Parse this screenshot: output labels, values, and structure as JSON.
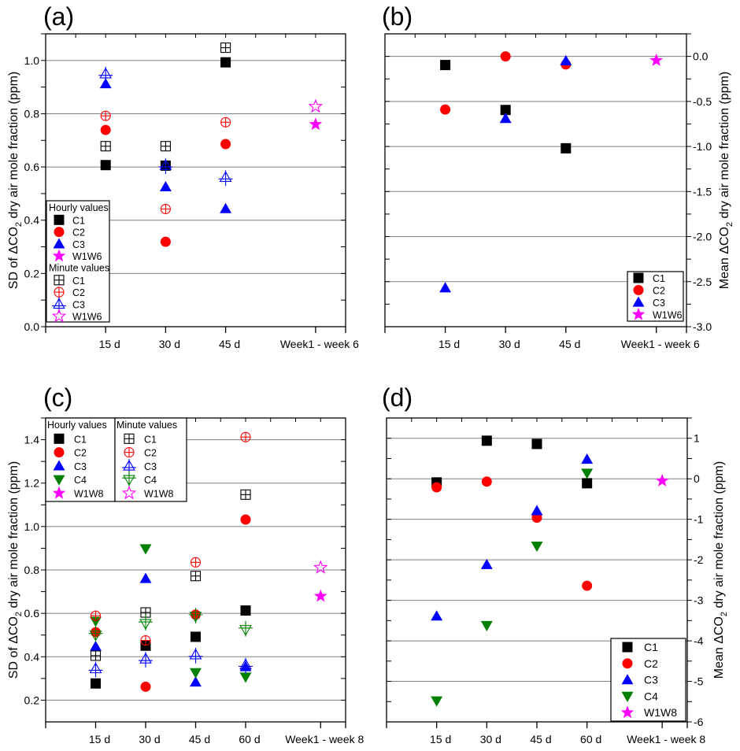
{
  "chart_data": [
    {
      "panel_label": "(a)",
      "type": "scatter",
      "categories": [
        "15 d",
        "30 d",
        "45 d",
        "Week1 - week 6"
      ],
      "ylabel": {
        "pre": "SD of ΔCO",
        "sub": "2",
        "post": " dry air mole fraction (ppm)"
      },
      "ylim": [
        0,
        1.1
      ],
      "y_ticks": [
        0,
        0.2,
        0.4,
        0.6,
        0.8,
        1.0
      ],
      "y_tick_labels": [
        "0.0",
        "0.2",
        "0.4",
        "0.6",
        "0.8",
        "1.0"
      ],
      "y_axis_side": "left",
      "grid": true,
      "legend_placement": "bottom-left",
      "series": [
        {
          "name": "C1",
          "group": "Hourly values",
          "marker": "square",
          "filled": true,
          "color": "#000000",
          "values": [
            0.607,
            0.605,
            0.993,
            null
          ]
        },
        {
          "name": "C2",
          "group": "Hourly values",
          "marker": "circle",
          "filled": true,
          "color": "#ff0000",
          "values": [
            0.739,
            0.319,
            0.686,
            null
          ]
        },
        {
          "name": "C3",
          "group": "Hourly values",
          "marker": "triangle-up",
          "filled": true,
          "color": "#0000ff",
          "values": [
            0.912,
            0.525,
            0.443,
            null
          ]
        },
        {
          "name": "W1W6",
          "group": "Hourly values",
          "marker": "star",
          "filled": true,
          "color": "#ff00ff",
          "values": [
            null,
            null,
            null,
            0.76
          ]
        },
        {
          "name": "C1",
          "group": "Minute values",
          "marker": "square",
          "filled": false,
          "color": "#000000",
          "values": [
            0.678,
            0.678,
            1.048,
            null
          ]
        },
        {
          "name": "C2",
          "group": "Minute values",
          "marker": "circle",
          "filled": false,
          "color": "#ff0000",
          "values": [
            0.792,
            0.442,
            0.768,
            null
          ]
        },
        {
          "name": "C3",
          "group": "Minute values",
          "marker": "triangle-up",
          "filled": false,
          "color": "#0000ff",
          "values": [
            0.95,
            0.606,
            0.561,
            null
          ]
        },
        {
          "name": "W1W6",
          "group": "Minute values",
          "marker": "star",
          "filled": false,
          "color": "#ff00ff",
          "values": [
            null,
            null,
            null,
            0.827
          ]
        }
      ]
    },
    {
      "panel_label": "(b)",
      "type": "scatter",
      "categories": [
        "15 d",
        "30 d",
        "45 d",
        "Week1 - week 6"
      ],
      "ylabel": {
        "pre": "Mean ΔCO",
        "sub": "2",
        "post": " dry air mole fraction (ppm)"
      },
      "ylim": [
        -3.0,
        0.25
      ],
      "y_ticks": [
        0,
        -0.5,
        -1.0,
        -1.5,
        -2.0,
        -2.5,
        -3.0
      ],
      "y_tick_labels": [
        "0.0",
        "-0.5",
        "-1.0",
        "-1.5",
        "-2.0",
        "-2.5",
        "-3.0"
      ],
      "y_axis_side": "right",
      "grid": true,
      "legend_placement": "bottom-right",
      "series": [
        {
          "name": "C1",
          "group": "",
          "marker": "square",
          "filled": true,
          "color": "#000000",
          "values": [
            -0.096,
            -0.595,
            -1.02,
            null
          ]
        },
        {
          "name": "C2",
          "group": "",
          "marker": "circle",
          "filled": true,
          "color": "#ff0000",
          "values": [
            -0.59,
            0.0,
            -0.09,
            null
          ]
        },
        {
          "name": "C3",
          "group": "",
          "marker": "triangle-up",
          "filled": true,
          "color": "#0000ff",
          "values": [
            -2.57,
            -0.69,
            -0.05,
            null
          ]
        },
        {
          "name": "W1W6",
          "group": "",
          "marker": "star",
          "filled": true,
          "color": "#ff00ff",
          "values": [
            null,
            null,
            null,
            -0.045
          ]
        }
      ]
    },
    {
      "panel_label": "(c)",
      "type": "scatter",
      "categories": [
        "15 d",
        "30 d",
        "45 d",
        "60 d",
        "Week1 - week 8"
      ],
      "ylabel": {
        "pre": "SD of ΔCO",
        "sub": "2",
        "post": " dry air mole fraction (ppm)"
      },
      "ylim": [
        0.1,
        1.5
      ],
      "y_ticks": [
        0.2,
        0.4,
        0.6,
        0.8,
        1.0,
        1.2,
        1.4
      ],
      "y_tick_labels": [
        "0.2",
        "0.4",
        "0.6",
        "0.8",
        "1.0",
        "1.2",
        "1.4"
      ],
      "y_axis_side": "left",
      "grid": true,
      "legend_placement": "top-left",
      "series": [
        {
          "name": "C1",
          "group": "Hourly values",
          "marker": "square",
          "filled": true,
          "color": "#000000",
          "values": [
            0.277,
            0.451,
            0.492,
            0.613,
            null
          ]
        },
        {
          "name": "C2",
          "group": "Hourly values",
          "marker": "circle",
          "filled": true,
          "color": "#ff0000",
          "values": [
            0.513,
            0.262,
            0.594,
            1.032,
            null
          ]
        },
        {
          "name": "C3",
          "group": "Hourly values",
          "marker": "triangle-up",
          "filled": true,
          "color": "#0000ff",
          "values": [
            0.447,
            0.76,
            0.283,
            0.354,
            null
          ]
        },
        {
          "name": "C4",
          "group": "Hourly values",
          "marker": "triangle-down",
          "filled": true,
          "color": "#008000",
          "values": [
            0.564,
            0.898,
            0.327,
            0.307,
            null
          ]
        },
        {
          "name": "W1W8",
          "group": "Hourly values",
          "marker": "star",
          "filled": true,
          "color": "#ff00ff",
          "values": [
            null,
            null,
            null,
            null,
            0.679
          ]
        },
        {
          "name": "C1",
          "group": "Minute values",
          "marker": "square",
          "filled": false,
          "color": "#000000",
          "values": [
            0.405,
            0.604,
            0.772,
            1.147,
            null
          ]
        },
        {
          "name": "C2",
          "group": "Minute values",
          "marker": "circle",
          "filled": false,
          "color": "#ff0000",
          "values": [
            0.589,
            0.475,
            0.835,
            1.412,
            null
          ]
        },
        {
          "name": "C3",
          "group": "Minute values",
          "marker": "triangle-up",
          "filled": false,
          "color": "#0000ff",
          "values": [
            0.345,
            0.39,
            0.409,
            0.363,
            null
          ]
        },
        {
          "name": "C4",
          "group": "Minute values",
          "marker": "triangle-down",
          "filled": false,
          "color": "#008000",
          "values": [
            0.5,
            0.553,
            0.586,
            0.525,
            null
          ]
        },
        {
          "name": "W1W8",
          "group": "Minute values",
          "marker": "star",
          "filled": false,
          "color": "#ff00ff",
          "values": [
            null,
            null,
            null,
            null,
            0.811
          ]
        }
      ]
    },
    {
      "panel_label": "(d)",
      "type": "scatter",
      "categories": [
        "15 d",
        "30 d",
        "45 d",
        "60 d",
        "Week1 - week 8"
      ],
      "ylabel": {
        "pre": "Mean ΔCO",
        "sub": "2",
        "post": " dry  air mole fraction (ppm)"
      },
      "ylim": [
        -6,
        1.5
      ],
      "y_ticks": [
        1,
        0,
        -1,
        -2,
        -3,
        -4,
        -5,
        -6
      ],
      "y_tick_labels": [
        "1",
        "0",
        "-1",
        "-2",
        "-3",
        "-4",
        "-5",
        "-6"
      ],
      "y_axis_side": "right",
      "grid": true,
      "legend_placement": "bottom-right",
      "series": [
        {
          "name": "C1",
          "group": "",
          "marker": "square",
          "filled": true,
          "color": "#000000",
          "values": [
            -0.09,
            0.94,
            0.86,
            -0.11,
            null
          ]
        },
        {
          "name": "C2",
          "group": "",
          "marker": "circle",
          "filled": true,
          "color": "#ff0000",
          "values": [
            -0.21,
            -0.07,
            -0.96,
            -2.64,
            null
          ]
        },
        {
          "name": "C3",
          "group": "",
          "marker": "triangle-up",
          "filled": true,
          "color": "#0000ff",
          "values": [
            -3.39,
            -2.12,
            -0.79,
            0.48,
            null
          ]
        },
        {
          "name": "C4",
          "group": "",
          "marker": "triangle-down",
          "filled": true,
          "color": "#008000",
          "values": [
            -5.48,
            -3.62,
            -1.66,
            0.14,
            null
          ]
        },
        {
          "name": "W1W8",
          "group": "",
          "marker": "star",
          "filled": true,
          "color": "#ff00ff",
          "values": [
            null,
            null,
            null,
            null,
            -0.05
          ]
        }
      ]
    }
  ]
}
